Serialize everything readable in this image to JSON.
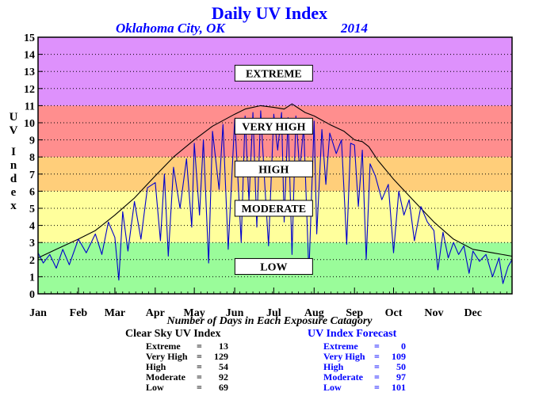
{
  "chart_data": {
    "type": "line",
    "title": "Daily UV Index",
    "location": "Oklahoma City, OK",
    "year": "2014",
    "ylabel": [
      "U",
      "V",
      "",
      "I",
      "n",
      "d",
      "e",
      "x"
    ],
    "ylim": [
      0,
      15
    ],
    "yticks": [
      0,
      1,
      2,
      3,
      4,
      5,
      6,
      7,
      8,
      9,
      10,
      11,
      12,
      13,
      14,
      15
    ],
    "xlim": [
      1,
      365
    ],
    "months": [
      {
        "label": "Jan",
        "day": 1
      },
      {
        "label": "Feb",
        "day": 32
      },
      {
        "label": "Mar",
        "day": 60
      },
      {
        "label": "Apr",
        "day": 91
      },
      {
        "label": "May",
        "day": 121
      },
      {
        "label": "Jun",
        "day": 152
      },
      {
        "label": "Jul",
        "day": 182
      },
      {
        "label": "Aug",
        "day": 213
      },
      {
        "label": "Sep",
        "day": 244
      },
      {
        "label": "Oct",
        "day": 274
      },
      {
        "label": "Nov",
        "day": 305
      },
      {
        "label": "Dec",
        "day": 335
      }
    ],
    "grid": true,
    "bands": [
      {
        "label": "LOW",
        "from": 0,
        "to": 3,
        "color": "#9afc9a",
        "label_y": 1.6
      },
      {
        "label": "MODERATE",
        "from": 3,
        "to": 6,
        "color": "#ffff9c",
        "label_y": 5.0
      },
      {
        "label": "HIGH",
        "from": 6,
        "to": 8,
        "color": "#ffce7a",
        "label_y": 7.3
      },
      {
        "label": "VERY HIGH",
        "from": 8,
        "to": 11,
        "color": "#ff8e8e",
        "label_y": 9.8
      },
      {
        "label": "EXTREME",
        "from": 11,
        "to": 15,
        "color": "#de91fc",
        "label_y": 12.9
      }
    ],
    "series": [
      {
        "role": "clear-sky",
        "color": "#000000",
        "x": [
          1,
          15,
          32,
          45,
          60,
          75,
          91,
          105,
          121,
          135,
          152,
          160,
          172,
          182,
          190,
          196,
          206,
          213,
          225,
          236,
          244,
          250,
          255,
          262,
          274,
          290,
          305,
          320,
          335,
          350,
          365
        ],
        "y": [
          2.1,
          2.6,
          3.2,
          3.7,
          4.6,
          5.6,
          6.9,
          8.0,
          9.0,
          9.8,
          10.5,
          10.8,
          11.0,
          10.9,
          10.8,
          11.1,
          10.6,
          10.4,
          9.9,
          9.5,
          9.0,
          8.9,
          8.6,
          7.8,
          6.7,
          5.4,
          4.2,
          3.2,
          2.6,
          2.4,
          2.2
        ]
      },
      {
        "role": "forecast",
        "color": "#0000cc",
        "x": [
          1,
          5,
          10,
          15,
          20,
          25,
          32,
          38,
          45,
          50,
          55,
          60,
          63,
          66,
          70,
          75,
          80,
          85,
          91,
          95,
          98,
          101,
          105,
          110,
          115,
          119,
          121,
          125,
          128,
          132,
          135,
          140,
          143,
          147,
          152,
          155,
          157,
          160,
          163,
          166,
          169,
          172,
          175,
          178,
          182,
          185,
          188,
          190,
          193,
          196,
          199,
          202,
          205,
          209,
          213,
          215,
          219,
          222,
          225,
          230,
          234,
          238,
          241,
          244,
          247,
          250,
          253,
          256,
          260,
          265,
          270,
          274,
          278,
          282,
          286,
          290,
          295,
          300,
          305,
          308,
          312,
          316,
          320,
          324,
          328,
          332,
          335,
          340,
          345,
          350,
          355,
          358,
          362,
          365
        ],
        "y": [
          2.4,
          1.8,
          2.3,
          1.5,
          2.6,
          1.7,
          3.2,
          2.4,
          3.5,
          2.3,
          4.2,
          3.3,
          0.8,
          4.8,
          2.5,
          5.4,
          3.2,
          6.2,
          6.5,
          3.1,
          7.0,
          2.2,
          7.4,
          5.0,
          7.9,
          3.9,
          8.8,
          4.6,
          9.0,
          1.8,
          9.5,
          6.1,
          9.9,
          2.6,
          10.2,
          6.0,
          3.0,
          10.4,
          5.4,
          10.6,
          3.9,
          10.7,
          6.5,
          2.8,
          10.5,
          8.4,
          10.6,
          4.2,
          10.3,
          2.3,
          10.4,
          7.2,
          9.8,
          1.2,
          10.1,
          3.5,
          9.6,
          6.4,
          9.4,
          8.2,
          9.0,
          2.9,
          8.8,
          8.7,
          5.1,
          8.4,
          2.0,
          7.6,
          6.9,
          5.5,
          6.4,
          2.4,
          6.0,
          4.6,
          5.5,
          3.1,
          5.1,
          4.2,
          3.7,
          1.4,
          3.6,
          2.1,
          3.0,
          2.3,
          2.8,
          1.2,
          2.5,
          1.9,
          2.3,
          1.0,
          2.1,
          0.6,
          1.6,
          2.0
        ]
      }
    ]
  },
  "footer_caption": "Number of Days in Each Exposure Catagory",
  "stats_clear": {
    "header": "Clear Sky UV Index",
    "rows": [
      {
        "label": "Extreme",
        "value": "13"
      },
      {
        "label": "Very High",
        "value": "129"
      },
      {
        "label": "High",
        "value": "54"
      },
      {
        "label": "Moderate",
        "value": "92"
      },
      {
        "label": "Low",
        "value": "69"
      }
    ]
  },
  "stats_forecast": {
    "header": "UV Index Forecast",
    "rows": [
      {
        "label": "Extreme",
        "value": "0"
      },
      {
        "label": "Very High",
        "value": "109"
      },
      {
        "label": "High",
        "value": "50"
      },
      {
        "label": "Moderate",
        "value": "97"
      },
      {
        "label": "Low",
        "value": "101"
      }
    ]
  },
  "colors": {
    "title": "#0000ff",
    "forecast_stats": "#0000ff",
    "clear_stats": "#000000"
  }
}
